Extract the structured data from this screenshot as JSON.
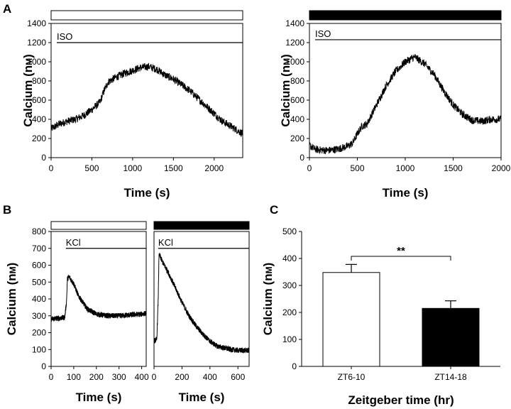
{
  "figure": {
    "panel_letters": [
      "A",
      "B",
      "C"
    ]
  },
  "chart_data": [
    {
      "id": "A1",
      "type": "line",
      "panel": "A",
      "condition_bar": "white",
      "xlabel": "Time (s)",
      "ylabel": "Calcium (nM)",
      "xlim": [
        0,
        2350
      ],
      "ylim": [
        0,
        1400
      ],
      "xticks": [
        0,
        500,
        1000,
        1500,
        2000
      ],
      "yticks": [
        0,
        200,
        400,
        600,
        800,
        1000,
        1200,
        1400
      ],
      "stimulus": {
        "label": "ISO",
        "x_start": 0,
        "x_end": 2350,
        "y": 1200
      },
      "noise": 40,
      "trace": {
        "x": [
          0,
          100,
          200,
          300,
          400,
          500,
          600,
          650,
          700,
          800,
          900,
          1000,
          1100,
          1200,
          1300,
          1400,
          1500,
          1600,
          1700,
          1800,
          1900,
          2000,
          2100,
          2200,
          2350
        ],
        "y": [
          300,
          350,
          380,
          400,
          440,
          500,
          580,
          700,
          790,
          840,
          880,
          910,
          940,
          950,
          920,
          860,
          820,
          760,
          700,
          620,
          540,
          460,
          380,
          330,
          250
        ]
      }
    },
    {
      "id": "A2",
      "type": "line",
      "panel": "A",
      "condition_bar": "black",
      "xlabel": "Time (s)",
      "ylabel": "Calcium (nM)",
      "xlim": [
        0,
        2000
      ],
      "ylim": [
        0,
        1400
      ],
      "xticks": [
        0,
        500,
        1000,
        1500,
        2000
      ],
      "yticks": [
        0,
        200,
        400,
        600,
        800,
        1000,
        1200,
        1400
      ],
      "stimulus": {
        "label": "ISO",
        "x_start": 0,
        "x_end": 2000,
        "y": 1230
      },
      "noise": 40,
      "trace": {
        "x": [
          0,
          50,
          100,
          200,
          300,
          400,
          450,
          500,
          550,
          600,
          700,
          800,
          900,
          1000,
          1100,
          1200,
          1300,
          1400,
          1500,
          1600,
          1700,
          1800,
          1900,
          2000
        ],
        "y": [
          130,
          90,
          80,
          75,
          90,
          120,
          150,
          250,
          330,
          350,
          550,
          750,
          900,
          1000,
          1050,
          980,
          870,
          700,
          550,
          450,
          390,
          380,
          400,
          400
        ]
      }
    },
    {
      "id": "B1",
      "type": "line",
      "panel": "B",
      "condition_bar": "white",
      "xlabel": "Time (s)",
      "ylabel": "Calcium (nM)",
      "xlim": [
        0,
        420
      ],
      "ylim": [
        0,
        800
      ],
      "xticks": [
        0,
        100,
        200,
        300,
        400
      ],
      "yticks": [
        0,
        100,
        200,
        300,
        400,
        500,
        600,
        700,
        800
      ],
      "stimulus": {
        "label": "KCl",
        "x_start": 65,
        "x_end": 420,
        "y": 700
      },
      "noise": 16,
      "trace": {
        "x": [
          0,
          30,
          60,
          68,
          72,
          80,
          100,
          120,
          140,
          160,
          200,
          250,
          300,
          350,
          400,
          420
        ],
        "y": [
          280,
          285,
          290,
          380,
          520,
          530,
          490,
          420,
          380,
          340,
          310,
          300,
          300,
          305,
          310,
          315
        ]
      }
    },
    {
      "id": "B2",
      "type": "line",
      "panel": "B",
      "condition_bar": "black",
      "xlabel": "Time (s)",
      "xlim": [
        0,
        680
      ],
      "ylim": [
        0,
        800
      ],
      "xticks": [
        0,
        200,
        400,
        600
      ],
      "stimulus": {
        "label": "KCl",
        "x_start": 30,
        "x_end": 680,
        "y": 700
      },
      "noise": 16,
      "trace": {
        "x": [
          0,
          20,
          30,
          35,
          40,
          60,
          100,
          150,
          200,
          250,
          300,
          350,
          400,
          450,
          500,
          550,
          600,
          680
        ],
        "y": [
          150,
          160,
          400,
          650,
          660,
          620,
          560,
          470,
          380,
          300,
          240,
          190,
          150,
          120,
          110,
          100,
          95,
          95
        ]
      }
    },
    {
      "id": "C",
      "type": "bar",
      "panel": "C",
      "xlabel": "Zeitgeber time (hr)",
      "ylabel": "Calcium (nM)",
      "ylim": [
        0,
        500
      ],
      "yticks": [
        0,
        100,
        200,
        300,
        400,
        500
      ],
      "categories": [
        "ZT6-10",
        "ZT14-18"
      ],
      "values": [
        348,
        215
      ],
      "errors": [
        30,
        28
      ],
      "bar_colors": [
        "#ffffff",
        "#000000"
      ],
      "significance": {
        "label": "**",
        "y": 408
      }
    }
  ]
}
